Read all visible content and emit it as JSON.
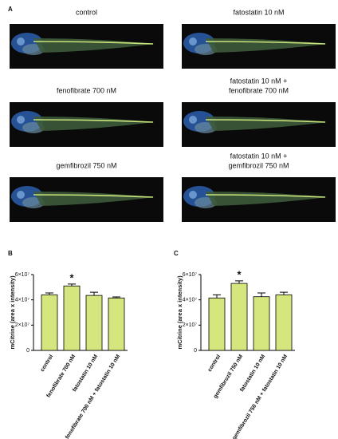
{
  "panel_a": {
    "label": "A",
    "images": [
      {
        "caption": [
          "control"
        ]
      },
      {
        "caption": [
          "fatostatin 10 nM"
        ]
      },
      {
        "caption": [
          "fenofibrate 700 nM"
        ]
      },
      {
        "caption": [
          "fatostatin 10 nM +",
          "fenofibrate 700 nM"
        ]
      },
      {
        "caption": [
          "gemfibrozil 750 nM"
        ]
      },
      {
        "caption": [
          "fatostatin 10 nM +",
          "gemfibrozil 750 nM"
        ]
      }
    ]
  },
  "chart_data": [
    {
      "type": "bar",
      "panel": "B",
      "y_label": "mCitrine (area x intensity)",
      "categories": [
        "control",
        "fenofibrate 700 nM",
        "fatostatin 10 nM",
        "fenofibrate 700 nM + fatostatin 10 nM"
      ],
      "values": [
        44000000,
        51000000,
        43500000,
        41500000
      ],
      "errors": [
        1500000,
        1500000,
        2500000,
        800000
      ],
      "significance": [
        null,
        "*",
        null,
        null
      ],
      "color": "#d6e67f",
      "ylim": [
        0,
        60000000
      ],
      "yticks": [
        0,
        {
          "value": 20000000,
          "label": "2×10⁷"
        },
        {
          "value": 40000000,
          "label": "4×10⁷"
        },
        {
          "value": 60000000,
          "label": "6×10⁷"
        }
      ]
    },
    {
      "type": "bar",
      "panel": "C",
      "y_label": "mCitrine (area x intensity)",
      "categories": [
        "control",
        "gemfibrozil 750 nM",
        "fatostatin 10 nM",
        "gemfibrozil 750 nM + fatostatin 10 nM"
      ],
      "values": [
        41500000,
        53000000,
        42500000,
        44000000
      ],
      "errors": [
        2500000,
        2000000,
        3000000,
        2000000
      ],
      "significance": [
        null,
        "*",
        null,
        null
      ],
      "color": "#d6e67f",
      "ylim": [
        0,
        60000000
      ],
      "yticks": [
        0,
        {
          "value": 20000000,
          "label": "2×10⁷"
        },
        {
          "value": 40000000,
          "label": "4×10⁷"
        },
        {
          "value": 60000000,
          "label": "6×10⁷"
        }
      ]
    }
  ]
}
